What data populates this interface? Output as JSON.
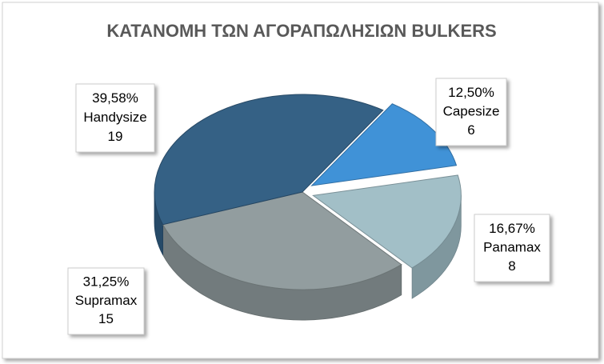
{
  "chart_data": {
    "type": "pie3d",
    "title": "ΚΑΤΑΝΟΜΗ ΤΩΝ ΑΓΟΡΑΠΩΛΗΣΙΩΝ BULKERS",
    "categories": [
      "Capesize",
      "Panamax",
      "Supramax",
      "Handysize"
    ],
    "values": [
      6,
      8,
      15,
      19
    ],
    "percentages": [
      12.5,
      16.67,
      31.25,
      39.58
    ],
    "percentage_labels": [
      "12,50%",
      "16,67%",
      "31,25%",
      "39,58%"
    ],
    "colors": [
      "#3a8fd6",
      "#9fbdc6",
      "#8f9a9c",
      "#2f5c82"
    ]
  }
}
